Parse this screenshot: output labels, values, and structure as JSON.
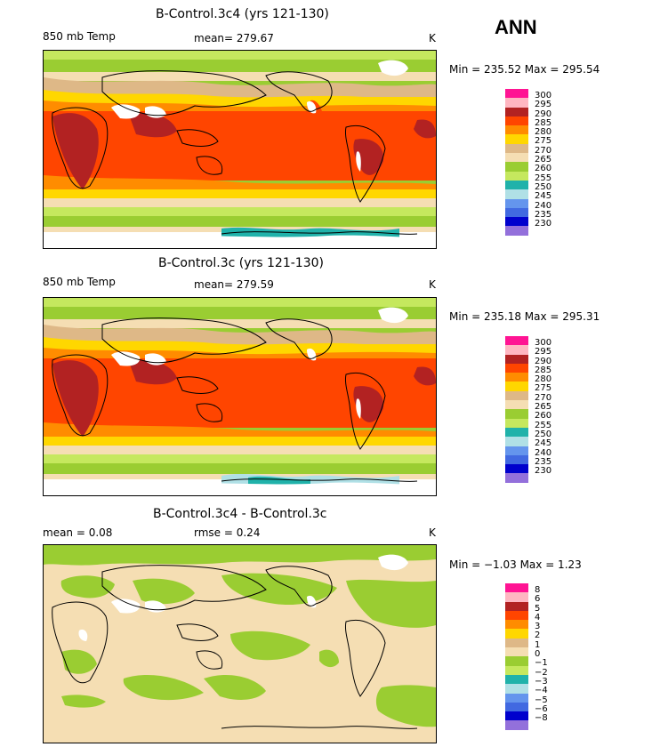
{
  "season": "ANN",
  "panels": [
    {
      "title": "B-Control.3c4 (yrs 121-130)",
      "left_label": "850 mb Temp",
      "mid_label": "mean= 279.67",
      "units": "K",
      "minmax": "Min = 235.52 Max = 295.54"
    },
    {
      "title": "B-Control.3c (yrs 121-130)",
      "left_label": "850 mb Temp",
      "mid_label": "mean= 279.59",
      "units": "K",
      "minmax": "Min = 235.18 Max = 295.31"
    },
    {
      "title": "B-Control.3c4 - B-Control.3c",
      "left_label": "mean =    0.08",
      "mid_label": "rmse =    0.24",
      "units": "K",
      "minmax": "Min =  −1.03 Max =    1.23"
    }
  ],
  "colorbars": {
    "absolute": {
      "colors": [
        "#ff1493",
        "#ffb6c1",
        "#b22222",
        "#ff4500",
        "#ff8c00",
        "#ffd700",
        "#deb887",
        "#f5deb3",
        "#9acd32",
        "#c5e85e",
        "#20b2aa",
        "#b0e0e6",
        "#6495ed",
        "#4169e1",
        "#0000cd",
        "#9370db"
      ],
      "labels": [
        "300",
        "295",
        "290",
        "285",
        "280",
        "275",
        "270",
        "265",
        "260",
        "255",
        "250",
        "245",
        "240",
        "235",
        "230"
      ]
    },
    "difference": {
      "colors": [
        "#ff1493",
        "#ffb6c1",
        "#b22222",
        "#ff4500",
        "#ff8c00",
        "#ffd700",
        "#deb887",
        "#f5deb3",
        "#9acd32",
        "#c5e85e",
        "#20b2aa",
        "#b0e0e6",
        "#6495ed",
        "#4169e1",
        "#0000cd",
        "#9370db"
      ],
      "labels": [
        "8",
        "6",
        "5",
        "4",
        "3",
        "2",
        "1",
        "0",
        "−1",
        "−2",
        "−3",
        "−4",
        "−5",
        "−6",
        "−8"
      ]
    }
  }
}
